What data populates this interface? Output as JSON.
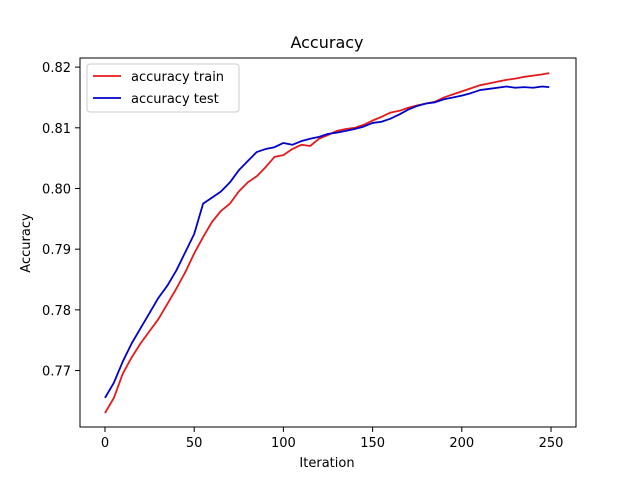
{
  "chart_data": {
    "type": "line",
    "title": "Accuracy",
    "xlabel": "Iteration",
    "ylabel": "Accuracy",
    "xlim": [
      -14,
      264
    ],
    "ylim": [
      0.7607,
      0.8215
    ],
    "xticks": [
      0,
      50,
      100,
      150,
      200,
      250
    ],
    "yticks": [
      0.77,
      0.78,
      0.79,
      0.8,
      0.81,
      0.82
    ],
    "ytick_labels": [
      "0.77",
      "0.78",
      "0.79",
      "0.80",
      "0.81",
      "0.82"
    ],
    "grid": false,
    "legend_position": "top-left",
    "series": [
      {
        "name": "accuracy train",
        "color": "#e41a1c",
        "x": [
          0,
          5,
          10,
          15,
          20,
          25,
          30,
          35,
          40,
          45,
          50,
          55,
          60,
          65,
          70,
          75,
          80,
          85,
          90,
          95,
          100,
          105,
          110,
          115,
          120,
          125,
          130,
          135,
          140,
          145,
          150,
          155,
          160,
          165,
          170,
          175,
          180,
          185,
          190,
          195,
          200,
          205,
          210,
          215,
          220,
          225,
          230,
          235,
          240,
          245,
          249
        ],
        "y": [
          0.763,
          0.7655,
          0.7695,
          0.7722,
          0.7745,
          0.7765,
          0.7785,
          0.781,
          0.7835,
          0.7862,
          0.7893,
          0.792,
          0.7945,
          0.7963,
          0.7975,
          0.7995,
          0.801,
          0.802,
          0.8035,
          0.8052,
          0.8055,
          0.8065,
          0.8072,
          0.807,
          0.8082,
          0.8088,
          0.8095,
          0.8098,
          0.81,
          0.8105,
          0.8112,
          0.8118,
          0.8125,
          0.8128,
          0.8133,
          0.8137,
          0.814,
          0.8143,
          0.815,
          0.8155,
          0.816,
          0.8165,
          0.817,
          0.8173,
          0.8176,
          0.8179,
          0.8181,
          0.8184,
          0.8186,
          0.8188,
          0.819
        ]
      },
      {
        "name": "accuracy test",
        "color": "#0000cc",
        "x": [
          0,
          5,
          10,
          15,
          20,
          25,
          30,
          35,
          40,
          45,
          50,
          55,
          60,
          65,
          70,
          75,
          80,
          85,
          90,
          95,
          100,
          105,
          110,
          115,
          120,
          125,
          130,
          135,
          140,
          145,
          150,
          155,
          160,
          165,
          170,
          175,
          180,
          185,
          190,
          195,
          200,
          205,
          210,
          215,
          220,
          225,
          230,
          235,
          240,
          245,
          249
        ],
        "y": [
          0.7655,
          0.768,
          0.7715,
          0.7745,
          0.777,
          0.7795,
          0.782,
          0.784,
          0.7865,
          0.7895,
          0.7925,
          0.7975,
          0.7985,
          0.7995,
          0.801,
          0.803,
          0.8045,
          0.806,
          0.8065,
          0.8068,
          0.8075,
          0.8072,
          0.8078,
          0.8082,
          0.8085,
          0.809,
          0.8092,
          0.8095,
          0.8098,
          0.8102,
          0.8108,
          0.811,
          0.8115,
          0.8122,
          0.813,
          0.8136,
          0.814,
          0.8142,
          0.8147,
          0.815,
          0.8153,
          0.8157,
          0.8162,
          0.8164,
          0.8166,
          0.8168,
          0.8166,
          0.8167,
          0.8166,
          0.8168,
          0.8167
        ]
      }
    ]
  }
}
